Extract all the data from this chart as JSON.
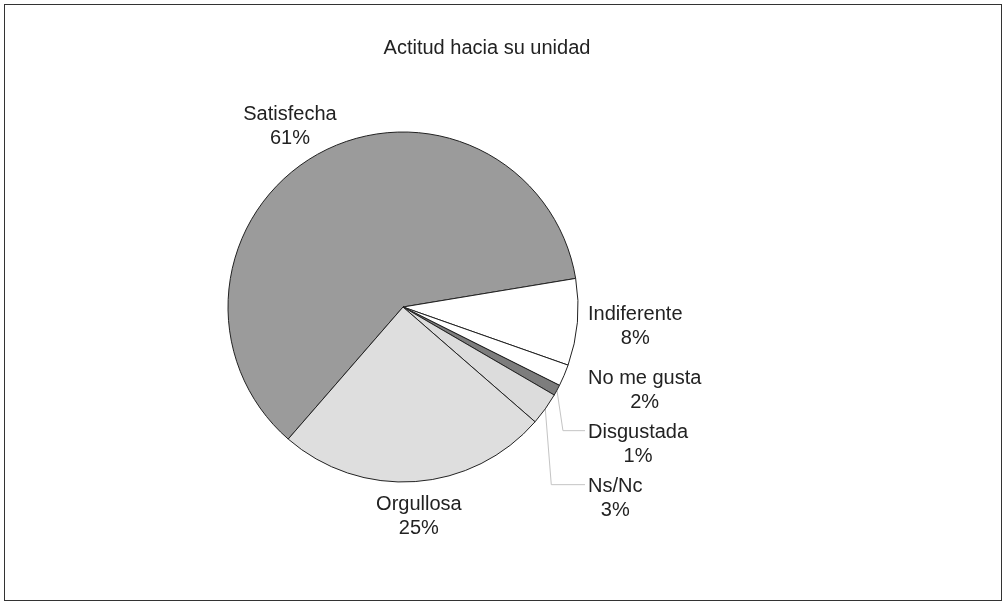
{
  "chart_data": {
    "type": "pie",
    "title": "Actitud hacia su unidad",
    "categories": [
      "Satisfecha",
      "Indiferente",
      "No me gusta",
      "Disgustada",
      "Ns/Nc",
      "Orgullosa"
    ],
    "values": [
      61,
      8,
      2,
      1,
      3,
      25
    ],
    "value_labels": [
      "61%",
      "8%",
      "2%",
      "1%",
      "3%",
      "25%"
    ],
    "colors": [
      "#9b9b9b",
      "#ffffff",
      "#ffffff",
      "#7d7d7d",
      "#dcdcdc",
      "#dedede"
    ],
    "legend": false
  }
}
